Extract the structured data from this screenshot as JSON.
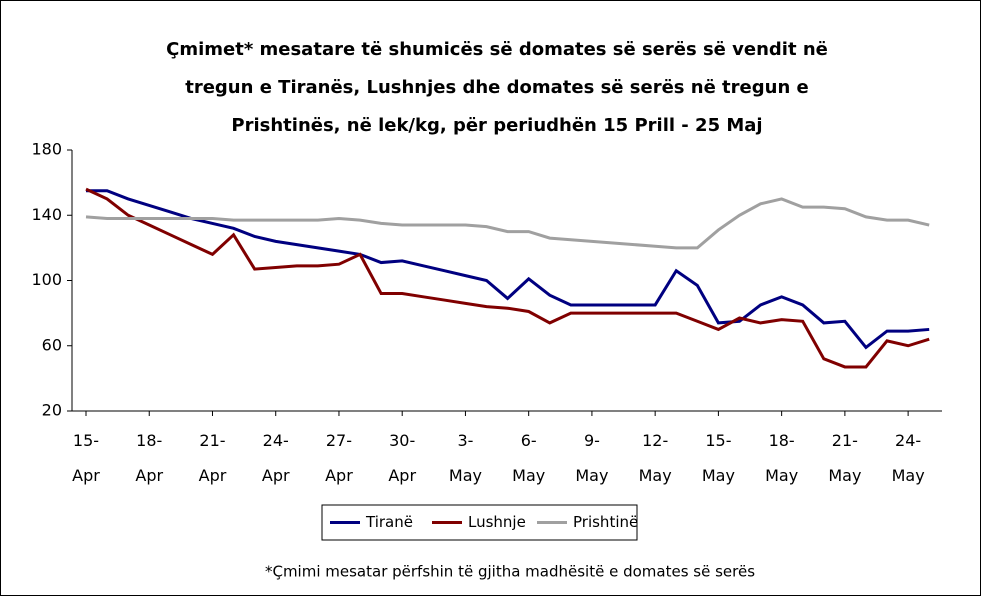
{
  "chart_data": {
    "type": "line",
    "title": [
      "Çmimet* mesatare të shumicës së domates së serës së vendit në",
      "tregun e Tiranës, Lushnjes dhe domates së serës në tregun e",
      "Prishtinës, në lek/kg, për periudhën 15 Prill - 25 Maj"
    ],
    "footnote": "*Çmimi mesatar përfshin të gjitha madhësitë e domates së serës",
    "categories": [
      "15-Apr",
      null,
      null,
      "18-Apr",
      null,
      null,
      "21-Apr",
      null,
      null,
      "24-Apr",
      null,
      null,
      "27-Apr",
      null,
      null,
      "30-Apr",
      null,
      null,
      "3-May",
      null,
      null,
      "6-May",
      null,
      null,
      "9-May",
      null,
      null,
      "12-May",
      null,
      null,
      "15-May",
      null,
      null,
      "18-May",
      null,
      null,
      "21-May",
      null,
      null,
      "24-May",
      null
    ],
    "series": [
      {
        "name": "Tiranë",
        "color": "#000080",
        "values": [
          155,
          155,
          150,
          146,
          142,
          138,
          135,
          132,
          127,
          124,
          122,
          120,
          118,
          116,
          111,
          112,
          109,
          106,
          103,
          100,
          89,
          101,
          91,
          85,
          85,
          85,
          85,
          85,
          106,
          97,
          74,
          75,
          85,
          90,
          85,
          74,
          75,
          59,
          69,
          69,
          70
        ]
      },
      {
        "name": "Lushnje",
        "color": "#800000",
        "values": [
          156,
          150,
          140,
          134,
          128,
          122,
          116,
          128,
          107,
          108,
          109,
          109,
          110,
          116,
          92,
          92,
          90,
          88,
          86,
          84,
          83,
          81,
          74,
          80,
          80,
          80,
          80,
          80,
          80,
          75,
          70,
          77,
          74,
          76,
          75,
          52,
          47,
          47,
          63,
          60,
          64
        ]
      },
      {
        "name": "Prishtinë",
        "color": "#a0a0a0",
        "values": [
          139,
          138,
          138,
          138,
          138,
          138,
          138,
          137,
          137,
          137,
          137,
          137,
          138,
          137,
          135,
          134,
          134,
          134,
          134,
          133,
          130,
          130,
          126,
          125,
          124,
          123,
          122,
          121,
          120,
          120,
          131,
          140,
          147,
          150,
          145,
          145,
          144,
          139,
          137,
          137,
          134
        ]
      }
    ],
    "ylim": [
      20,
      180
    ],
    "yticks": [
      20,
      60,
      100,
      140,
      180
    ],
    "grid": false,
    "legend": "bottom"
  }
}
